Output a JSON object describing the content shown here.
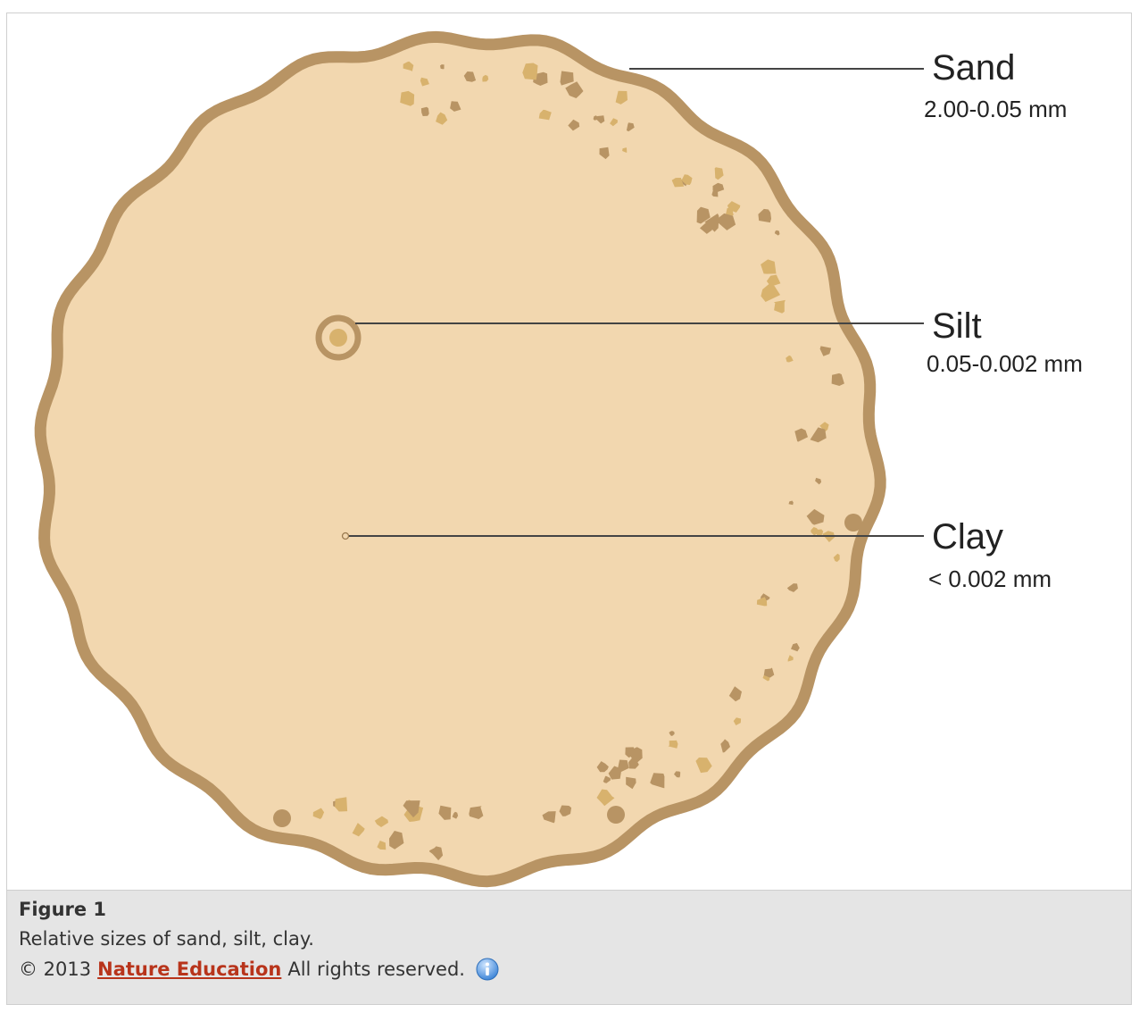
{
  "diagram": {
    "labels": [
      {
        "id": "sand",
        "name": "Sand",
        "range": "2.00-0.05 mm"
      },
      {
        "id": "silt",
        "name": "Silt",
        "range": "0.05-0.002 mm"
      },
      {
        "id": "clay",
        "name": "Clay",
        "range": "< 0.002 mm"
      }
    ],
    "colors": {
      "fill": "#f2d7af",
      "rim": "#b89464",
      "grain_dark": "#b89464",
      "grain_light": "#d8b26d",
      "leader": "#444444"
    }
  },
  "caption": {
    "title": "Figure 1",
    "description": "Relative sizes of sand, silt, clay.",
    "copyright": "© 2013",
    "link_text": "Nature Education",
    "rights": "All rights reserved.",
    "info_icon": "info-icon"
  }
}
